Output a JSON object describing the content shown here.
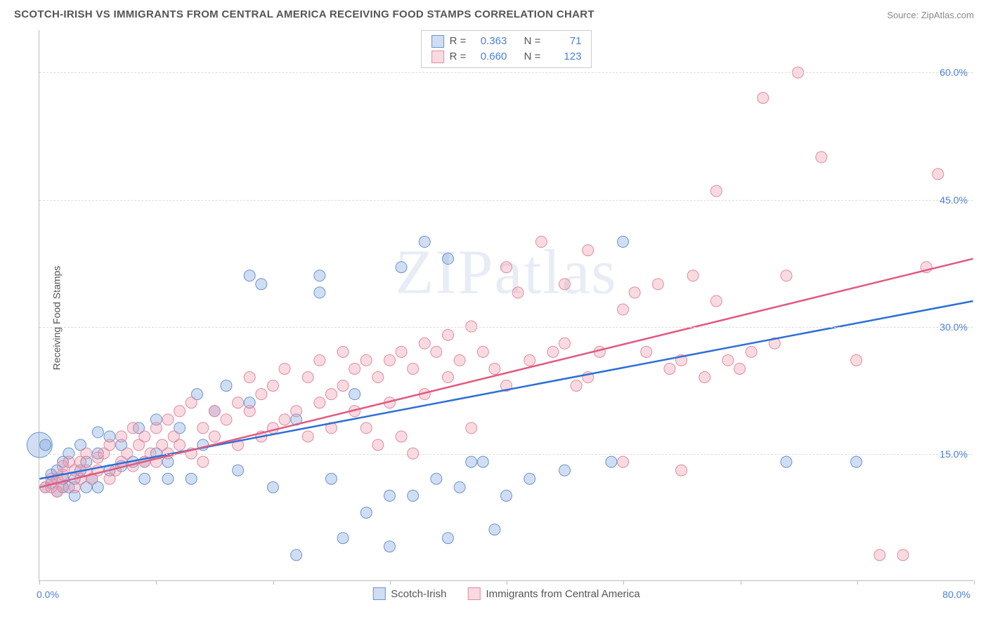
{
  "title": "SCOTCH-IRISH VS IMMIGRANTS FROM CENTRAL AMERICA RECEIVING FOOD STAMPS CORRELATION CHART",
  "source_label": "Source:",
  "source_name": "ZipAtlas.com",
  "ylabel": "Receiving Food Stamps",
  "watermark": "ZIPatlas",
  "chart": {
    "type": "scatter",
    "xlim": [
      0,
      80
    ],
    "ylim": [
      0,
      65
    ],
    "x_origin_label": "0.0%",
    "x_max_label": "80.0%",
    "y_ticks": [
      15.0,
      30.0,
      45.0,
      60.0
    ],
    "y_tick_labels": [
      "15.0%",
      "30.0%",
      "45.0%",
      "60.0%"
    ],
    "x_tick_positions": [
      0,
      10,
      20,
      30,
      40,
      50,
      60,
      70,
      80
    ],
    "grid_color": "#dddddd",
    "axis_color": "#bbbbbb",
    "background_color": "#ffffff",
    "label_color": "#4a7fd8",
    "point_radius": 8,
    "series": [
      {
        "key": "scotch_irish",
        "label": "Scotch-Irish",
        "R": "0.363",
        "N": "71",
        "fill": "rgba(120,160,220,0.35)",
        "stroke": "#6a93cf",
        "line_color": "#2d6fd6",
        "trend": {
          "x1": 0,
          "y1": 12.0,
          "x2": 80,
          "y2": 33.0
        },
        "points": [
          [
            0.5,
            11
          ],
          [
            0.5,
            16
          ],
          [
            1,
            11.5
          ],
          [
            1,
            12.5
          ],
          [
            1.5,
            10.5
          ],
          [
            1.5,
            13
          ],
          [
            2,
            11
          ],
          [
            2,
            12
          ],
          [
            2,
            14
          ],
          [
            2.5,
            11
          ],
          [
            2.5,
            15
          ],
          [
            3,
            10
          ],
          [
            3,
            12
          ],
          [
            3.5,
            13
          ],
          [
            3.5,
            16
          ],
          [
            4,
            11
          ],
          [
            4,
            14
          ],
          [
            4.5,
            12
          ],
          [
            5,
            11
          ],
          [
            5,
            15
          ],
          [
            5,
            17.5
          ],
          [
            6,
            13
          ],
          [
            6,
            17
          ],
          [
            7,
            13.5
          ],
          [
            7,
            16
          ],
          [
            8,
            14
          ],
          [
            8.5,
            18
          ],
          [
            9,
            14
          ],
          [
            9,
            12
          ],
          [
            10,
            15
          ],
          [
            10,
            19
          ],
          [
            11,
            14
          ],
          [
            11,
            12
          ],
          [
            12,
            18
          ],
          [
            13,
            12
          ],
          [
            13.5,
            22
          ],
          [
            14,
            16
          ],
          [
            15,
            20
          ],
          [
            16,
            23
          ],
          [
            17,
            13
          ],
          [
            18,
            21
          ],
          [
            18,
            36
          ],
          [
            19,
            35
          ],
          [
            20,
            11
          ],
          [
            22,
            3
          ],
          [
            22,
            19
          ],
          [
            24,
            36
          ],
          [
            24,
            34
          ],
          [
            25,
            12
          ],
          [
            26,
            5
          ],
          [
            27,
            22
          ],
          [
            28,
            8
          ],
          [
            30,
            4
          ],
          [
            30,
            10
          ],
          [
            31,
            37
          ],
          [
            32,
            10
          ],
          [
            33,
            40
          ],
          [
            34,
            12
          ],
          [
            35,
            38
          ],
          [
            35,
            5
          ],
          [
            36,
            11
          ],
          [
            37,
            14
          ],
          [
            38,
            14
          ],
          [
            39,
            6
          ],
          [
            40,
            10
          ],
          [
            42,
            12
          ],
          [
            45,
            13
          ],
          [
            49,
            14
          ],
          [
            50,
            40
          ],
          [
            64,
            14
          ],
          [
            70,
            14
          ]
        ],
        "big_points": [
          [
            0,
            16,
            18
          ]
        ]
      },
      {
        "key": "central_america",
        "label": "Immigrants from Central America",
        "R": "0.660",
        "N": "123",
        "fill": "rgba(240,150,170,0.35)",
        "stroke": "#e08a9f",
        "line_color": "#e05a7f",
        "trend": {
          "x1": 0,
          "y1": 11.0,
          "x2": 80,
          "y2": 38.0
        },
        "points": [
          [
            0.5,
            11
          ],
          [
            1,
            11
          ],
          [
            1,
            12
          ],
          [
            1.5,
            10.5
          ],
          [
            1.5,
            12
          ],
          [
            2,
            11
          ],
          [
            2,
            12.5
          ],
          [
            2,
            13.5
          ],
          [
            2.5,
            14
          ],
          [
            3,
            11
          ],
          [
            3,
            13
          ],
          [
            3.5,
            12
          ],
          [
            3.5,
            14
          ],
          [
            4,
            13
          ],
          [
            4,
            15
          ],
          [
            4.5,
            12
          ],
          [
            5,
            13
          ],
          [
            5,
            14.5
          ],
          [
            5.5,
            15
          ],
          [
            6,
            12
          ],
          [
            6,
            16
          ],
          [
            6.5,
            13
          ],
          [
            7,
            14
          ],
          [
            7,
            17
          ],
          [
            7.5,
            15
          ],
          [
            8,
            13.5
          ],
          [
            8,
            18
          ],
          [
            8.5,
            16
          ],
          [
            9,
            14
          ],
          [
            9,
            17
          ],
          [
            9.5,
            15
          ],
          [
            10,
            14
          ],
          [
            10,
            18
          ],
          [
            10.5,
            16
          ],
          [
            11,
            15
          ],
          [
            11,
            19
          ],
          [
            11.5,
            17
          ],
          [
            12,
            16
          ],
          [
            12,
            20
          ],
          [
            13,
            15
          ],
          [
            13,
            21
          ],
          [
            14,
            18
          ],
          [
            14,
            14
          ],
          [
            15,
            17
          ],
          [
            15,
            20
          ],
          [
            16,
            19
          ],
          [
            17,
            21
          ],
          [
            17,
            16
          ],
          [
            18,
            20
          ],
          [
            18,
            24
          ],
          [
            19,
            22
          ],
          [
            19,
            17
          ],
          [
            20,
            18
          ],
          [
            20,
            23
          ],
          [
            21,
            19
          ],
          [
            21,
            25
          ],
          [
            22,
            20
          ],
          [
            23,
            24
          ],
          [
            23,
            17
          ],
          [
            24,
            21
          ],
          [
            24,
            26
          ],
          [
            25,
            18
          ],
          [
            25,
            22
          ],
          [
            26,
            23
          ],
          [
            26,
            27
          ],
          [
            27,
            20
          ],
          [
            27,
            25
          ],
          [
            28,
            18
          ],
          [
            28,
            26
          ],
          [
            29,
            24
          ],
          [
            29,
            16
          ],
          [
            30,
            26
          ],
          [
            30,
            21
          ],
          [
            31,
            27
          ],
          [
            31,
            17
          ],
          [
            32,
            25
          ],
          [
            32,
            15
          ],
          [
            33,
            28
          ],
          [
            33,
            22
          ],
          [
            34,
            27
          ],
          [
            35,
            24
          ],
          [
            35,
            29
          ],
          [
            36,
            26
          ],
          [
            37,
            18
          ],
          [
            37,
            30
          ],
          [
            38,
            27
          ],
          [
            39,
            25
          ],
          [
            40,
            37
          ],
          [
            40,
            23
          ],
          [
            41,
            34
          ],
          [
            42,
            26
          ],
          [
            43,
            40
          ],
          [
            44,
            27
          ],
          [
            45,
            28
          ],
          [
            45,
            35
          ],
          [
            46,
            23
          ],
          [
            47,
            39
          ],
          [
            47,
            24
          ],
          [
            48,
            27
          ],
          [
            50,
            32
          ],
          [
            50,
            14
          ],
          [
            51,
            34
          ],
          [
            52,
            27
          ],
          [
            53,
            35
          ],
          [
            54,
            25
          ],
          [
            55,
            13
          ],
          [
            55,
            26
          ],
          [
            56,
            36
          ],
          [
            57,
            24
          ],
          [
            58,
            33
          ],
          [
            58,
            46
          ],
          [
            59,
            26
          ],
          [
            60,
            25
          ],
          [
            61,
            27
          ],
          [
            62,
            57
          ],
          [
            63,
            28
          ],
          [
            64,
            36
          ],
          [
            65,
            60
          ],
          [
            67,
            50
          ],
          [
            70,
            26
          ],
          [
            72,
            3
          ],
          [
            74,
            3
          ],
          [
            76,
            37
          ],
          [
            77,
            48
          ]
        ],
        "big_points": []
      }
    ]
  },
  "legend_stats": {
    "R_label": "R =",
    "N_label": "N ="
  }
}
